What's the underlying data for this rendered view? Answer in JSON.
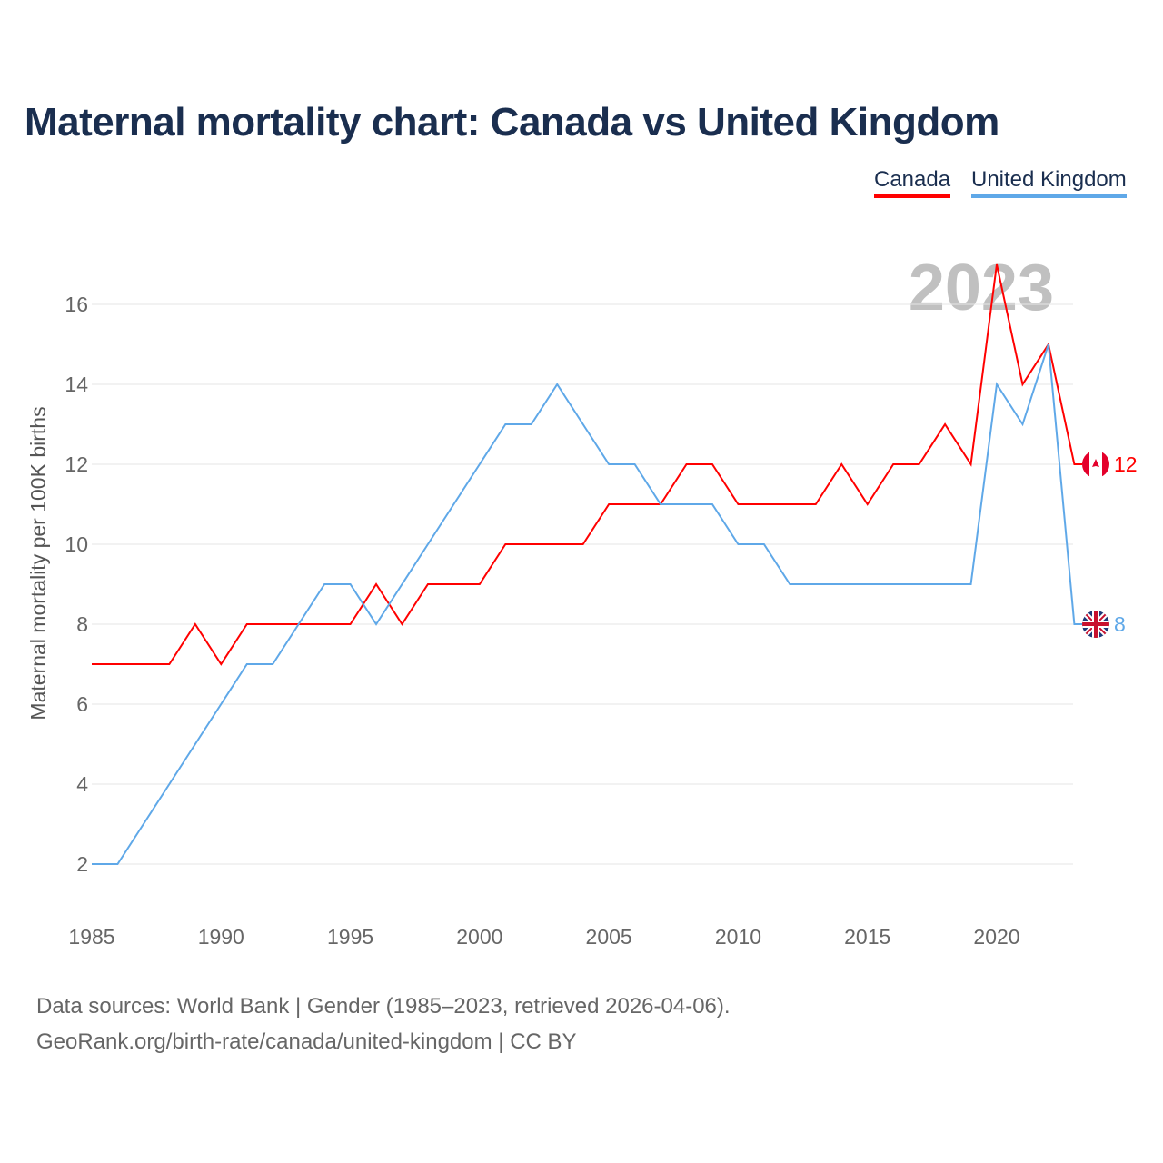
{
  "title": "Maternal mortality chart: Canada vs United Kingdom",
  "legend": [
    "Canada",
    "United Kingdom"
  ],
  "footer": {
    "line1": "Data sources: World Bank | Gender (1985–2023, retrieved 2026-04-06).",
    "line2": "GeoRank.org/birth-rate/canada/united-kingdom | CC BY"
  },
  "colors": {
    "canada": "#ff0000",
    "uk": "#5fa8e8",
    "grid": "#e6e6e6",
    "year_watermark": "#c0c0c0"
  },
  "chart_data": {
    "type": "line",
    "title": "Maternal mortality chart: Canada vs United Kingdom",
    "ylabel": "Maternal mortality per 100K births",
    "xlabel": "",
    "year_label": "2023",
    "x": [
      1985,
      1986,
      1987,
      1988,
      1989,
      1990,
      1991,
      1992,
      1993,
      1994,
      1995,
      1996,
      1997,
      1998,
      1999,
      2000,
      2001,
      2002,
      2003,
      2004,
      2005,
      2006,
      2007,
      2008,
      2009,
      2010,
      2011,
      2012,
      2013,
      2014,
      2015,
      2016,
      2017,
      2018,
      2019,
      2020,
      2021,
      2022,
      2023
    ],
    "xlim": [
      1985,
      2023
    ],
    "ylim": [
      0,
      17
    ],
    "xticks": [
      "1985",
      "1990",
      "1995",
      "2000",
      "2005",
      "2010",
      "2015",
      "2020"
    ],
    "yticks": [
      "2",
      "4",
      "6",
      "8",
      "10",
      "12",
      "14",
      "16"
    ],
    "grid": true,
    "legend_position": "top-right",
    "series": [
      {
        "name": "Canada",
        "end_label": "12",
        "values": [
          7,
          7,
          7,
          7,
          8,
          7,
          8,
          8,
          8,
          8,
          8,
          9,
          8,
          9,
          9,
          9,
          10,
          10,
          10,
          10,
          11,
          11,
          11,
          12,
          12,
          11,
          11,
          11,
          11,
          12,
          11,
          12,
          12,
          13,
          12,
          17,
          14,
          15,
          12
        ]
      },
      {
        "name": "United Kingdom",
        "end_label": "8",
        "values": [
          2,
          2,
          3,
          4,
          5,
          6,
          7,
          7,
          8,
          9,
          9,
          8,
          9,
          10,
          11,
          12,
          13,
          13,
          14,
          13,
          12,
          12,
          11,
          11,
          11,
          10,
          10,
          9,
          9,
          9,
          9,
          9,
          9,
          9,
          9,
          14,
          13,
          15,
          8
        ]
      }
    ]
  }
}
